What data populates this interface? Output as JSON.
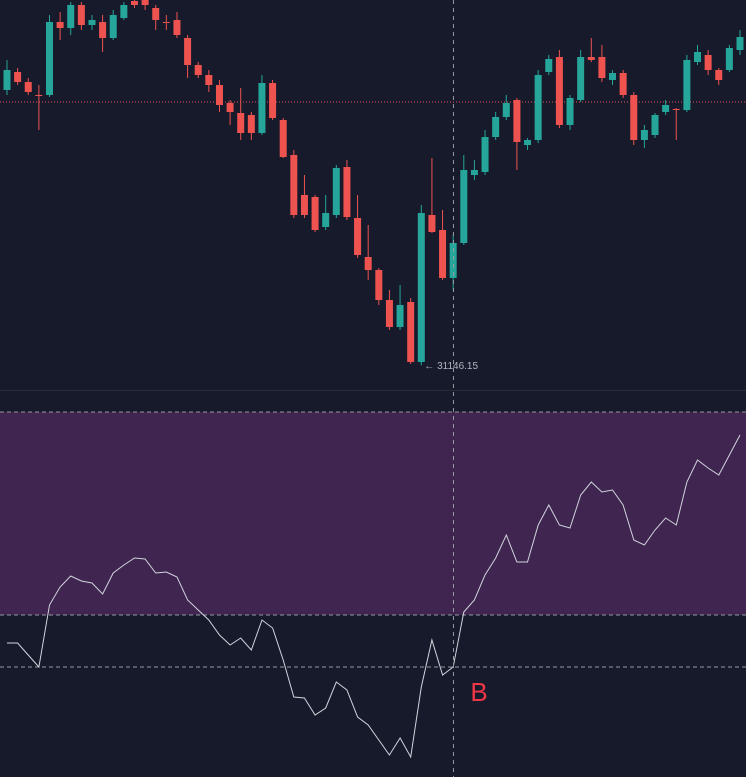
{
  "chart_data": [
    {
      "type": "candlestick",
      "ylim": [
        30900,
        34800
      ],
      "up_color": "#26a69a",
      "down_color": "#ef5350",
      "price_line": 33780,
      "price_line_color": "#ef5350",
      "low_label": "← 31146.15",
      "candles": [
        [
          33900,
          34200,
          33850,
          34100
        ],
        [
          34080,
          34120,
          33950,
          33980
        ],
        [
          33980,
          34020,
          33850,
          33880
        ],
        [
          33850,
          33950,
          33500,
          33840
        ],
        [
          33850,
          34650,
          33830,
          34580
        ],
        [
          34580,
          34680,
          34400,
          34520
        ],
        [
          34520,
          34780,
          34450,
          34750
        ],
        [
          34750,
          34780,
          34500,
          34550
        ],
        [
          34550,
          34650,
          34500,
          34600
        ],
        [
          34580,
          34650,
          34280,
          34420
        ],
        [
          34420,
          34700,
          34400,
          34650
        ],
        [
          34620,
          34780,
          34600,
          34750
        ],
        [
          34790,
          34800,
          34720,
          34750
        ],
        [
          34800,
          34800,
          34700,
          34750
        ],
        [
          34720,
          34750,
          34500,
          34600
        ],
        [
          34580,
          34650,
          34500,
          34570
        ],
        [
          34600,
          34680,
          34420,
          34450
        ],
        [
          34420,
          34450,
          34020,
          34150
        ],
        [
          34150,
          34180,
          34020,
          34050
        ],
        [
          34050,
          34100,
          33880,
          33950
        ],
        [
          33950,
          34000,
          33680,
          33750
        ],
        [
          33770,
          33800,
          33550,
          33680
        ],
        [
          33670,
          33920,
          33400,
          33470
        ],
        [
          33650,
          33680,
          33400,
          33470
        ],
        [
          33470,
          34050,
          33450,
          33970
        ],
        [
          33970,
          34000,
          33600,
          33620
        ],
        [
          33600,
          33620,
          33220,
          33230
        ],
        [
          33250,
          33300,
          32620,
          32650
        ],
        [
          32850,
          33050,
          32620,
          32650
        ],
        [
          32830,
          32850,
          32480,
          32500
        ],
        [
          32530,
          32850,
          32500,
          32670
        ],
        [
          32650,
          33150,
          32620,
          33120
        ],
        [
          33130,
          33200,
          32600,
          32630
        ],
        [
          32620,
          32850,
          32220,
          32250
        ],
        [
          32230,
          32550,
          32000,
          32100
        ],
        [
          32100,
          32120,
          31750,
          31800
        ],
        [
          31800,
          31900,
          31500,
          31530
        ],
        [
          31530,
          31950,
          31500,
          31750
        ],
        [
          31780,
          31820,
          31160,
          31180
        ],
        [
          31180,
          32750,
          31146.15,
          32670
        ],
        [
          32650,
          33220,
          32470,
          32480
        ],
        [
          32500,
          32700,
          32000,
          32020
        ],
        [
          32020,
          32450,
          31900,
          32370
        ],
        [
          32370,
          33250,
          32350,
          33100
        ],
        [
          33050,
          33200,
          33000,
          33100
        ],
        [
          33080,
          33500,
          33050,
          33430
        ],
        [
          33430,
          33680,
          33400,
          33630
        ],
        [
          33630,
          33850,
          33600,
          33770
        ],
        [
          33800,
          33820,
          33100,
          33380
        ],
        [
          33350,
          33420,
          33300,
          33400
        ],
        [
          33400,
          34100,
          33370,
          34050
        ],
        [
          34080,
          34250,
          34050,
          34210
        ],
        [
          34230,
          34300,
          33520,
          33550
        ],
        [
          33550,
          33850,
          33500,
          33820
        ],
        [
          33800,
          34300,
          33780,
          34230
        ],
        [
          34230,
          34420,
          34180,
          34200
        ],
        [
          34230,
          34350,
          33980,
          34020
        ],
        [
          34000,
          34100,
          33950,
          34070
        ],
        [
          34070,
          34100,
          33820,
          33850
        ],
        [
          33850,
          33880,
          33350,
          33400
        ],
        [
          33400,
          33550,
          33320,
          33500
        ],
        [
          33450,
          33670,
          33420,
          33650
        ],
        [
          33680,
          33800,
          33650,
          33750
        ],
        [
          33710,
          33720,
          33400,
          33700
        ],
        [
          33700,
          34250,
          33680,
          34200
        ],
        [
          34180,
          34350,
          34150,
          34280
        ],
        [
          34250,
          34300,
          34050,
          34100
        ],
        [
          34100,
          34120,
          33950,
          34000
        ],
        [
          34100,
          34350,
          34080,
          34320
        ],
        [
          34300,
          34500,
          34250,
          34430
        ]
      ]
    },
    {
      "type": "line",
      "ylim": [
        8,
        85.4
      ],
      "color": "#d1d4dc",
      "levels": [
        81,
        40.4,
        30
      ],
      "band_color": "#3f2550",
      "annotation": "B",
      "annotation_color": "#f23645",
      "values": [
        34.8,
        34.8,
        32.4,
        30,
        42.4,
        46,
        48.2,
        47.2,
        46.8,
        44.6,
        48.8,
        50.4,
        51.8,
        51.6,
        48.8,
        49,
        48,
        43.4,
        41.4,
        39.4,
        36.4,
        34.4,
        35.8,
        33.4,
        39.4,
        37.8,
        31.4,
        24,
        23.8,
        20.4,
        21.8,
        27,
        25.4,
        20,
        18.4,
        15.4,
        12.4,
        15.8,
        12,
        26,
        35.4,
        28.4,
        30,
        41,
        43.4,
        48.4,
        51.8,
        56.4,
        51,
        51,
        58.4,
        62.4,
        58.4,
        57.8,
        64.4,
        67,
        65,
        65.4,
        62.4,
        55.4,
        54.4,
        57.4,
        59.8,
        58.4,
        67,
        71.4,
        69.8,
        68.4,
        72.4,
        76.4
      ]
    }
  ]
}
